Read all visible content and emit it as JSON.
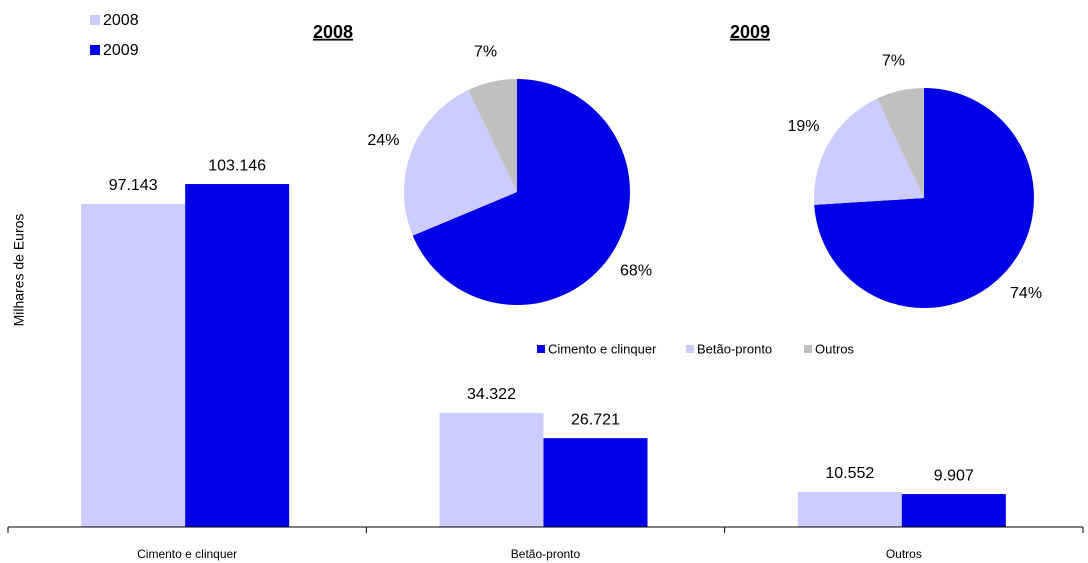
{
  "chart_data": [
    {
      "type": "bar",
      "y_label": "Milhares de Euros",
      "categories": [
        "Cimento e clinquer",
        "Betão-pronto",
        "Outros"
      ],
      "series": [
        {
          "name": "2008",
          "color": "#ccccff",
          "values": [
            97143,
            34322,
            10552
          ],
          "value_labels": [
            "97.143",
            "34.322",
            "10.552"
          ]
        },
        {
          "name": "2009",
          "color": "#0000e6",
          "values": [
            103146,
            26721,
            9907
          ],
          "value_labels": [
            "103.146",
            "26.721",
            "9.907"
          ]
        }
      ],
      "ylim": [
        0,
        120000
      ]
    },
    {
      "type": "pie",
      "title": "2008",
      "categories": [
        "Cimento e clinquer",
        "Betão-pronto",
        "Outros"
      ],
      "values": [
        68,
        24,
        7
      ],
      "value_labels": [
        "68%",
        "24%",
        "7%"
      ],
      "colors": [
        "#0000e6",
        "#ccccff",
        "#c0c0c0"
      ]
    },
    {
      "type": "pie",
      "title": "2009",
      "categories": [
        "Cimento e clinquer",
        "Betão-pronto",
        "Outros"
      ],
      "values": [
        74,
        19,
        7
      ],
      "value_labels": [
        "74%",
        "19%",
        "7%"
      ],
      "colors": [
        "#0000e6",
        "#ccccff",
        "#c0c0c0"
      ]
    }
  ]
}
